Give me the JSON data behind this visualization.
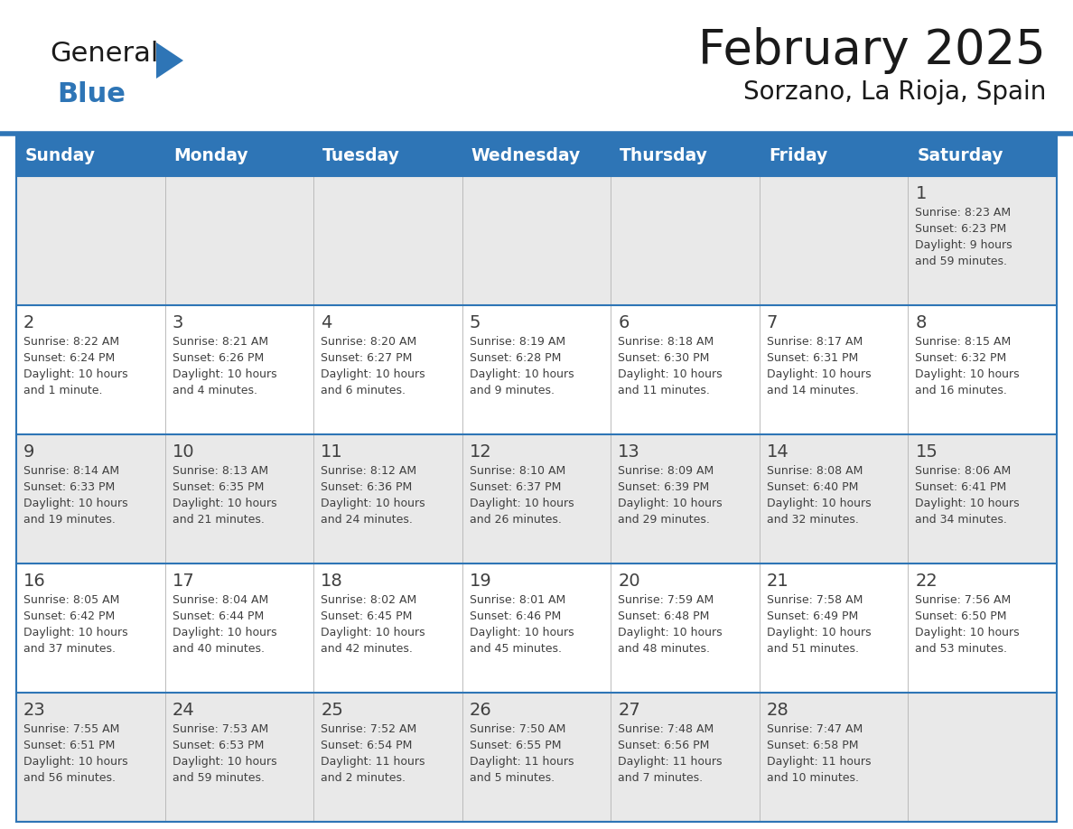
{
  "title": "February 2025",
  "subtitle": "Sorzano, La Rioja, Spain",
  "days_of_week": [
    "Sunday",
    "Monday",
    "Tuesday",
    "Wednesday",
    "Thursday",
    "Friday",
    "Saturday"
  ],
  "header_bg": "#2E75B6",
  "header_text": "#FFFFFF",
  "row_separator_color": "#2E75B6",
  "row0_bg": "#E9E9E9",
  "row1_bg": "#FFFFFF",
  "row2_bg": "#E9E9E9",
  "row3_bg": "#FFFFFF",
  "row4_bg": "#E9E9E9",
  "day_number_color": "#404040",
  "cell_text_color": "#404040",
  "logo_black": "#1a1a1a",
  "logo_blue": "#2E75B6",
  "calendar_data": [
    {
      "day": 1,
      "col": 6,
      "row": 0,
      "sunrise": "8:23 AM",
      "sunset": "6:23 PM",
      "daylight_line1": "Daylight: 9 hours",
      "daylight_line2": "and 59 minutes."
    },
    {
      "day": 2,
      "col": 0,
      "row": 1,
      "sunrise": "8:22 AM",
      "sunset": "6:24 PM",
      "daylight_line1": "Daylight: 10 hours",
      "daylight_line2": "and 1 minute."
    },
    {
      "day": 3,
      "col": 1,
      "row": 1,
      "sunrise": "8:21 AM",
      "sunset": "6:26 PM",
      "daylight_line1": "Daylight: 10 hours",
      "daylight_line2": "and 4 minutes."
    },
    {
      "day": 4,
      "col": 2,
      "row": 1,
      "sunrise": "8:20 AM",
      "sunset": "6:27 PM",
      "daylight_line1": "Daylight: 10 hours",
      "daylight_line2": "and 6 minutes."
    },
    {
      "day": 5,
      "col": 3,
      "row": 1,
      "sunrise": "8:19 AM",
      "sunset": "6:28 PM",
      "daylight_line1": "Daylight: 10 hours",
      "daylight_line2": "and 9 minutes."
    },
    {
      "day": 6,
      "col": 4,
      "row": 1,
      "sunrise": "8:18 AM",
      "sunset": "6:30 PM",
      "daylight_line1": "Daylight: 10 hours",
      "daylight_line2": "and 11 minutes."
    },
    {
      "day": 7,
      "col": 5,
      "row": 1,
      "sunrise": "8:17 AM",
      "sunset": "6:31 PM",
      "daylight_line1": "Daylight: 10 hours",
      "daylight_line2": "and 14 minutes."
    },
    {
      "day": 8,
      "col": 6,
      "row": 1,
      "sunrise": "8:15 AM",
      "sunset": "6:32 PM",
      "daylight_line1": "Daylight: 10 hours",
      "daylight_line2": "and 16 minutes."
    },
    {
      "day": 9,
      "col": 0,
      "row": 2,
      "sunrise": "8:14 AM",
      "sunset": "6:33 PM",
      "daylight_line1": "Daylight: 10 hours",
      "daylight_line2": "and 19 minutes."
    },
    {
      "day": 10,
      "col": 1,
      "row": 2,
      "sunrise": "8:13 AM",
      "sunset": "6:35 PM",
      "daylight_line1": "Daylight: 10 hours",
      "daylight_line2": "and 21 minutes."
    },
    {
      "day": 11,
      "col": 2,
      "row": 2,
      "sunrise": "8:12 AM",
      "sunset": "6:36 PM",
      "daylight_line1": "Daylight: 10 hours",
      "daylight_line2": "and 24 minutes."
    },
    {
      "day": 12,
      "col": 3,
      "row": 2,
      "sunrise": "8:10 AM",
      "sunset": "6:37 PM",
      "daylight_line1": "Daylight: 10 hours",
      "daylight_line2": "and 26 minutes."
    },
    {
      "day": 13,
      "col": 4,
      "row": 2,
      "sunrise": "8:09 AM",
      "sunset": "6:39 PM",
      "daylight_line1": "Daylight: 10 hours",
      "daylight_line2": "and 29 minutes."
    },
    {
      "day": 14,
      "col": 5,
      "row": 2,
      "sunrise": "8:08 AM",
      "sunset": "6:40 PM",
      "daylight_line1": "Daylight: 10 hours",
      "daylight_line2": "and 32 minutes."
    },
    {
      "day": 15,
      "col": 6,
      "row": 2,
      "sunrise": "8:06 AM",
      "sunset": "6:41 PM",
      "daylight_line1": "Daylight: 10 hours",
      "daylight_line2": "and 34 minutes."
    },
    {
      "day": 16,
      "col": 0,
      "row": 3,
      "sunrise": "8:05 AM",
      "sunset": "6:42 PM",
      "daylight_line1": "Daylight: 10 hours",
      "daylight_line2": "and 37 minutes."
    },
    {
      "day": 17,
      "col": 1,
      "row": 3,
      "sunrise": "8:04 AM",
      "sunset": "6:44 PM",
      "daylight_line1": "Daylight: 10 hours",
      "daylight_line2": "and 40 minutes."
    },
    {
      "day": 18,
      "col": 2,
      "row": 3,
      "sunrise": "8:02 AM",
      "sunset": "6:45 PM",
      "daylight_line1": "Daylight: 10 hours",
      "daylight_line2": "and 42 minutes."
    },
    {
      "day": 19,
      "col": 3,
      "row": 3,
      "sunrise": "8:01 AM",
      "sunset": "6:46 PM",
      "daylight_line1": "Daylight: 10 hours",
      "daylight_line2": "and 45 minutes."
    },
    {
      "day": 20,
      "col": 4,
      "row": 3,
      "sunrise": "7:59 AM",
      "sunset": "6:48 PM",
      "daylight_line1": "Daylight: 10 hours",
      "daylight_line2": "and 48 minutes."
    },
    {
      "day": 21,
      "col": 5,
      "row": 3,
      "sunrise": "7:58 AM",
      "sunset": "6:49 PM",
      "daylight_line1": "Daylight: 10 hours",
      "daylight_line2": "and 51 minutes."
    },
    {
      "day": 22,
      "col": 6,
      "row": 3,
      "sunrise": "7:56 AM",
      "sunset": "6:50 PM",
      "daylight_line1": "Daylight: 10 hours",
      "daylight_line2": "and 53 minutes."
    },
    {
      "day": 23,
      "col": 0,
      "row": 4,
      "sunrise": "7:55 AM",
      "sunset": "6:51 PM",
      "daylight_line1": "Daylight: 10 hours",
      "daylight_line2": "and 56 minutes."
    },
    {
      "day": 24,
      "col": 1,
      "row": 4,
      "sunrise": "7:53 AM",
      "sunset": "6:53 PM",
      "daylight_line1": "Daylight: 10 hours",
      "daylight_line2": "and 59 minutes."
    },
    {
      "day": 25,
      "col": 2,
      "row": 4,
      "sunrise": "7:52 AM",
      "sunset": "6:54 PM",
      "daylight_line1": "Daylight: 11 hours",
      "daylight_line2": "and 2 minutes."
    },
    {
      "day": 26,
      "col": 3,
      "row": 4,
      "sunrise": "7:50 AM",
      "sunset": "6:55 PM",
      "daylight_line1": "Daylight: 11 hours",
      "daylight_line2": "and 5 minutes."
    },
    {
      "day": 27,
      "col": 4,
      "row": 4,
      "sunrise": "7:48 AM",
      "sunset": "6:56 PM",
      "daylight_line1": "Daylight: 11 hours",
      "daylight_line2": "and 7 minutes."
    },
    {
      "day": 28,
      "col": 5,
      "row": 4,
      "sunrise": "7:47 AM",
      "sunset": "6:58 PM",
      "daylight_line1": "Daylight: 11 hours",
      "daylight_line2": "and 10 minutes."
    }
  ]
}
